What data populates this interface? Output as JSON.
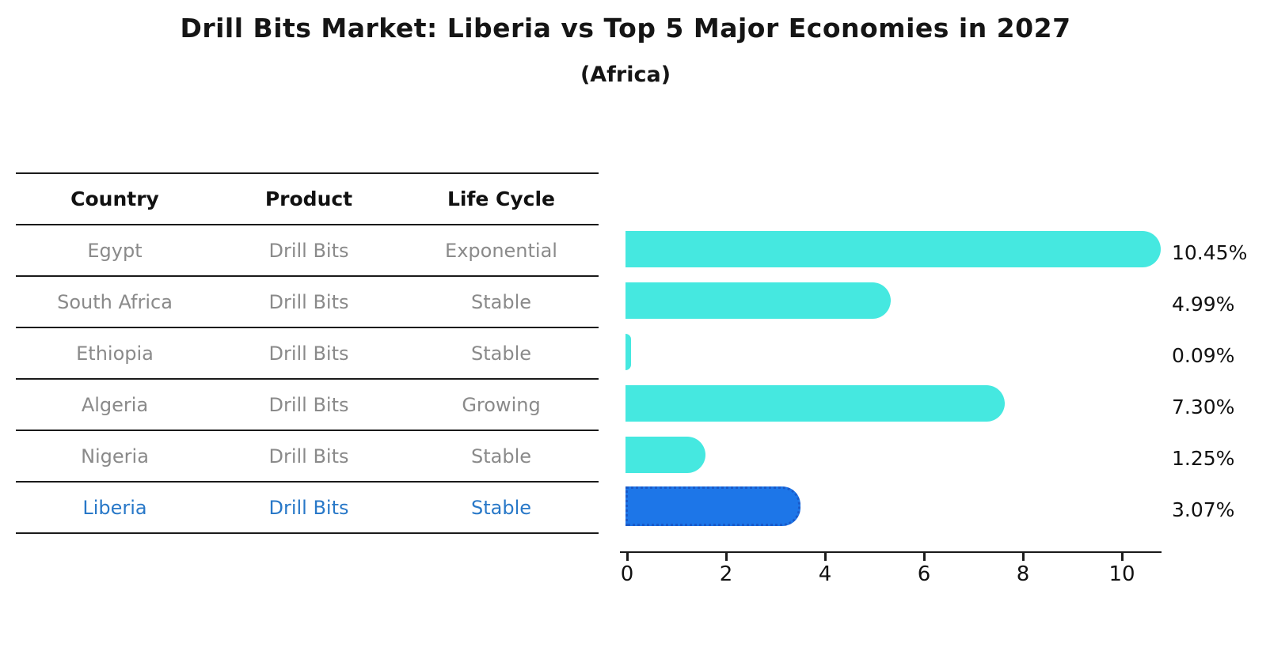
{
  "title": "Drill Bits Market: Liberia vs Top 5 Major Economies in 2027",
  "subtitle": "(Africa)",
  "table": {
    "columns": [
      "Country",
      "Product",
      "Life Cycle"
    ],
    "rows": [
      {
        "country": "Egypt",
        "product": "Drill Bits",
        "life_cycle": "Exponential",
        "highlight": false
      },
      {
        "country": "South Africa",
        "product": "Drill Bits",
        "life_cycle": "Stable",
        "highlight": false
      },
      {
        "country": "Ethiopia",
        "product": "Drill Bits",
        "life_cycle": "Stable",
        "highlight": false
      },
      {
        "country": "Algeria",
        "product": "Drill Bits",
        "life_cycle": "Growing",
        "highlight": false
      },
      {
        "country": "Nigeria",
        "product": "Drill Bits",
        "life_cycle": "Stable",
        "highlight": false
      },
      {
        "country": "Liberia",
        "product": "Drill Bits",
        "life_cycle": "Stable",
        "highlight": true
      }
    ]
  },
  "chart_data": {
    "type": "bar",
    "orientation": "horizontal",
    "title": "Drill Bits Market: Liberia vs Top 5 Major Economies in 2027",
    "subtitle": "(Africa)",
    "categories": [
      "Egypt",
      "South Africa",
      "Ethiopia",
      "Algeria",
      "Nigeria",
      "Liberia"
    ],
    "values": [
      10.45,
      4.99,
      0.09,
      7.3,
      1.25,
      3.07
    ],
    "value_labels": [
      "10.45%",
      "4.99%",
      "0.09%",
      "7.30%",
      "1.25%",
      "3.07%"
    ],
    "x_ticks": [
      "0",
      "2",
      "4",
      "6",
      "8",
      "10"
    ],
    "xlim": [
      0,
      10.9
    ],
    "xlabel": "",
    "ylabel": "",
    "grid": false,
    "legend": "none",
    "bar_color": "#45e8e0",
    "highlight_bar_color": "#1d76e8",
    "highlight_border_color": "#1a5ac9",
    "highlight_text_color": "#2878c8",
    "highlight_index": 5
  }
}
